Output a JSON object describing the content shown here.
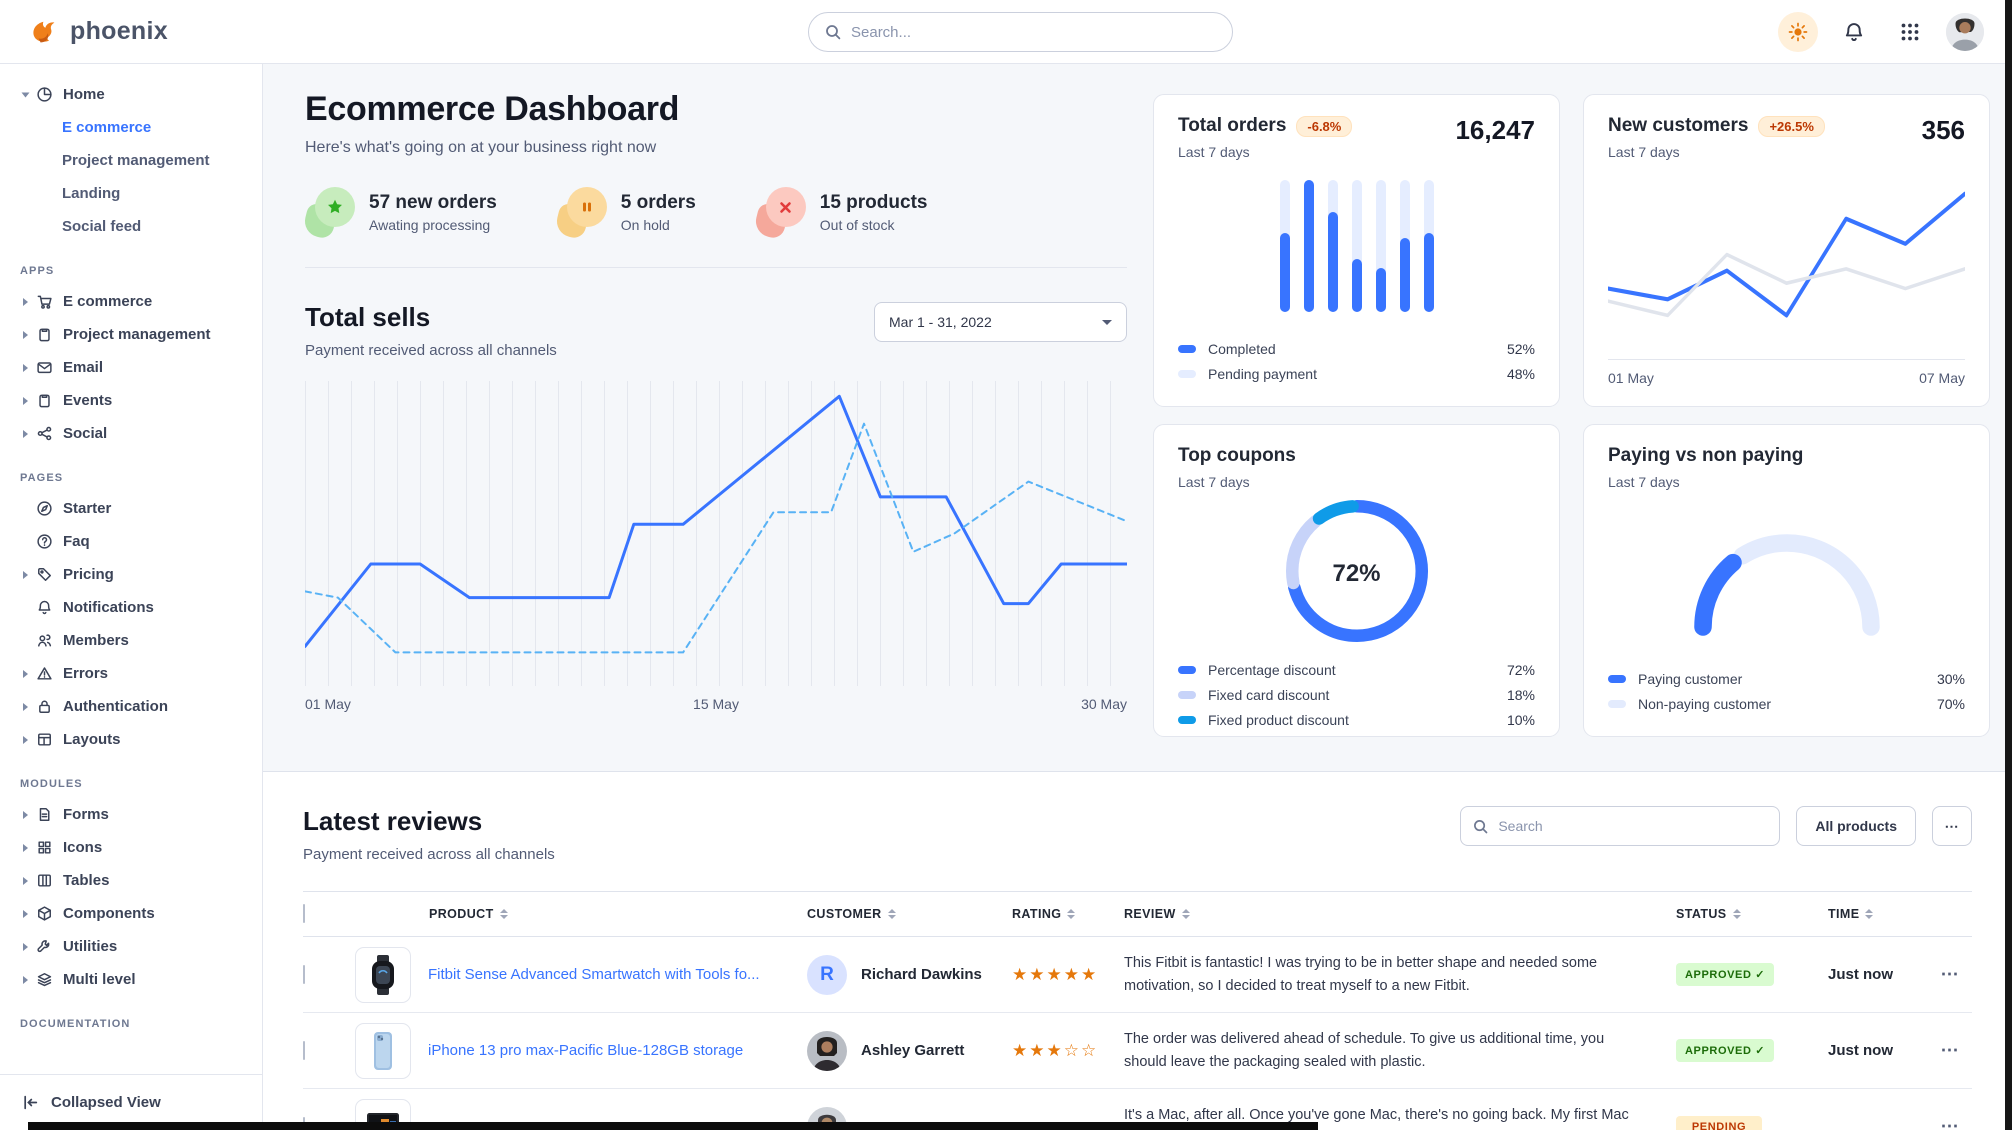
{
  "brand": {
    "name": "phoenix"
  },
  "topnav": {
    "search_placeholder": "Search...",
    "icons": [
      "sun-icon",
      "bell-icon",
      "grid-apps-icon",
      "user-avatar"
    ]
  },
  "sidebar": {
    "home": {
      "label": "Home",
      "icon": "pie",
      "children": [
        {
          "label": "E commerce",
          "active": true
        },
        {
          "label": "Project management",
          "active": false
        },
        {
          "label": "Landing",
          "active": false
        },
        {
          "label": "Social feed",
          "active": false
        }
      ]
    },
    "sections": [
      {
        "label": "APPS",
        "items": [
          {
            "label": "E commerce",
            "icon": "cart",
            "caret": true
          },
          {
            "label": "Project management",
            "icon": "clipboard",
            "caret": true
          },
          {
            "label": "Email",
            "icon": "email",
            "caret": true
          },
          {
            "label": "Events",
            "icon": "calendar",
            "caret": true
          },
          {
            "label": "Social",
            "icon": "share",
            "caret": true
          }
        ]
      },
      {
        "label": "PAGES",
        "items": [
          {
            "label": "Starter",
            "icon": "compass",
            "caret": false
          },
          {
            "label": "Faq",
            "icon": "question",
            "caret": false
          },
          {
            "label": "Pricing",
            "icon": "tag",
            "caret": true
          },
          {
            "label": "Notifications",
            "icon": "bell",
            "caret": false
          },
          {
            "label": "Members",
            "icon": "users",
            "caret": false
          },
          {
            "label": "Errors",
            "icon": "warning",
            "caret": true
          },
          {
            "label": "Authentication",
            "icon": "lock",
            "caret": true
          },
          {
            "label": "Layouts",
            "icon": "layout",
            "caret": true
          }
        ]
      },
      {
        "label": "MODULES",
        "items": [
          {
            "label": "Forms",
            "icon": "file",
            "caret": true
          },
          {
            "label": "Icons",
            "icon": "grid",
            "caret": true
          },
          {
            "label": "Tables",
            "icon": "table",
            "caret": true
          },
          {
            "label": "Components",
            "icon": "box",
            "caret": true
          },
          {
            "label": "Utilities",
            "icon": "wrench",
            "caret": true
          },
          {
            "label": "Multi level",
            "icon": "layers",
            "caret": true
          }
        ]
      },
      {
        "label": "DOCUMENTATION",
        "items": []
      }
    ],
    "footer": {
      "label": "Collapsed View",
      "icon": "collapse"
    }
  },
  "page": {
    "title": "Ecommerce Dashboard",
    "subtitle": "Here's what's going on at your business right now"
  },
  "stats": [
    {
      "value_label": "57 new orders",
      "sub": "Awating processing",
      "icon": "star-icon",
      "color": "green"
    },
    {
      "value_label": "5 orders",
      "sub": "On hold",
      "icon": "pause-icon",
      "color": "orange"
    },
    {
      "value_label": "15 products",
      "sub": "Out of stock",
      "icon": "x-icon",
      "color": "red"
    }
  ],
  "total_sells": {
    "title": "Total sells",
    "subtitle": "Payment received across all channels",
    "date_range": "Mar 1 - 31, 2022",
    "x_labels": [
      "01 May",
      "15 May",
      "30 May"
    ]
  },
  "cards": {
    "total_orders": {
      "title": "Total orders",
      "badge": "-6.8%",
      "value": "16,247",
      "period": "Last 7 days",
      "legend": [
        {
          "label": "Completed",
          "value": "52%"
        },
        {
          "label": "Pending payment",
          "value": "48%"
        }
      ]
    },
    "new_customers": {
      "title": "New customers",
      "badge": "+26.5%",
      "value": "356",
      "period": "Last 7 days",
      "x_labels": [
        "01 May",
        "07 May"
      ]
    },
    "top_coupons": {
      "title": "Top coupons",
      "period": "Last 7 days",
      "center_label": "72%",
      "legend": [
        {
          "label": "Percentage discount",
          "value": "72%"
        },
        {
          "label": "Fixed card discount",
          "value": "18%"
        },
        {
          "label": "Fixed product discount",
          "value": "10%"
        }
      ]
    },
    "paying": {
      "title": "Paying vs non paying",
      "period": "Last 7 days",
      "legend": [
        {
          "label": "Paying customer",
          "value": "30%"
        },
        {
          "label": "Non-paying customer",
          "value": "70%"
        }
      ]
    }
  },
  "reviews": {
    "title": "Latest reviews",
    "subtitle": "Payment received across all channels",
    "search_placeholder": "Search",
    "filter_label": "All products",
    "columns": [
      "PRODUCT",
      "CUSTOMER",
      "RATING",
      "REVIEW",
      "STATUS",
      "TIME"
    ],
    "rows": [
      {
        "product": "Fitbit Sense Advanced Smartwatch with Tools fo...",
        "image": "watch",
        "customer": "Richard Dawkins",
        "avatar": "initial",
        "initial": "R",
        "rating": 5,
        "review": "This Fitbit is fantastic! I was trying to be in better shape and needed some motivation, so I decided to treat myself to a new Fitbit.",
        "status": "APPROVED",
        "status_color": "green",
        "time": "Just now"
      },
      {
        "product": "iPhone 13 pro max-Pacific Blue-128GB storage",
        "image": "phone",
        "customer": "Ashley Garrett",
        "avatar": "photo-f1",
        "initial": "",
        "rating": 3,
        "review": "The order was delivered ahead of schedule. To give us additional time, you should leave the packaging sealed with plastic.",
        "status": "APPROVED",
        "status_color": "green",
        "time": "Just now"
      },
      {
        "product": "",
        "image": "laptop",
        "customer": "",
        "avatar": "photo-f2",
        "initial": "",
        "rating": null,
        "review": "It's a Mac, after all. Once you've gone Mac, there's no going back. My first Mac lasted",
        "status": "PENDING",
        "status_color": "orange",
        "time": ""
      }
    ]
  },
  "chart_data": [
    {
      "id": "total-sells",
      "type": "line",
      "title": "Total sells",
      "xlabel": "",
      "ylabel": "",
      "x_labels": [
        "01 May",
        "15 May",
        "30 May"
      ],
      "grid": "vertical",
      "series": [
        {
          "name": "current period",
          "style": "solid",
          "color": "#3874ff",
          "width": 3,
          "points": [
            [
              0,
              13
            ],
            [
              8,
              40
            ],
            [
              14,
              40
            ],
            [
              20,
              29
            ],
            [
              37,
              29
            ],
            [
              40,
              53
            ],
            [
              46,
              53
            ],
            [
              65,
              95
            ],
            [
              70,
              62
            ],
            [
              78,
              62
            ],
            [
              85,
              27
            ],
            [
              88,
              27
            ],
            [
              92,
              40
            ],
            [
              100,
              40
            ]
          ]
        },
        {
          "name": "previous period",
          "style": "dashed",
          "color": "#58b2f5",
          "width": 2,
          "points": [
            [
              0,
              31
            ],
            [
              4,
              29
            ],
            [
              11,
              11
            ],
            [
              46,
              11
            ],
            [
              57,
              57
            ],
            [
              64,
              57
            ],
            [
              68,
              86
            ],
            [
              74,
              44
            ],
            [
              79,
              50
            ],
            [
              88,
              67
            ],
            [
              100,
              54
            ]
          ]
        }
      ]
    },
    {
      "id": "total-orders",
      "type": "bar",
      "title": "Total orders",
      "categories": [
        "d1",
        "d2",
        "d3",
        "d4",
        "d5",
        "d6",
        "d7"
      ],
      "completed_pct": [
        60,
        100,
        76,
        40,
        33,
        56,
        60
      ],
      "colors": {
        "completed": "#3874ff",
        "pending": "#e5edff"
      },
      "legend": [
        "Completed 52%",
        "Pending payment 48%"
      ]
    },
    {
      "id": "new-customers",
      "type": "line",
      "title": "New customers",
      "x_labels": [
        "01 May",
        "07 May"
      ],
      "series": [
        {
          "name": "new customers",
          "style": "solid",
          "color": "#3874ff",
          "width": 3.5,
          "points": [
            [
              0,
              36
            ],
            [
              16.7,
              30
            ],
            [
              33.3,
              46
            ],
            [
              50,
              21
            ],
            [
              66.7,
              75
            ],
            [
              83.3,
              61
            ],
            [
              100,
              89
            ]
          ]
        },
        {
          "name": "previous",
          "style": "solid",
          "color": "#e0e4ec",
          "width": 3,
          "points": [
            [
              0,
              29
            ],
            [
              16.7,
              21
            ],
            [
              33.3,
              55
            ],
            [
              50,
              39
            ],
            [
              66.7,
              47
            ],
            [
              83.3,
              36
            ],
            [
              100,
              47
            ]
          ]
        }
      ]
    },
    {
      "id": "top-coupons",
      "type": "pie",
      "title": "Top coupons",
      "center_label": "72%",
      "segments": [
        {
          "label": "Percentage discount",
          "value": 72,
          "color": "#3874ff"
        },
        {
          "label": "Fixed card discount",
          "value": 18,
          "color": "#c7d3f9"
        },
        {
          "label": "Fixed product discount",
          "value": 10,
          "color": "#0f9be8"
        }
      ]
    },
    {
      "id": "paying-gauge",
      "type": "pie",
      "title": "Paying vs non paying",
      "shape": "half-donut",
      "segments": [
        {
          "label": "Paying customer",
          "value": 30,
          "color": "#3874ff"
        },
        {
          "label": "Non-paying customer",
          "value": 70,
          "color": "#e3ebfd"
        }
      ]
    }
  ]
}
